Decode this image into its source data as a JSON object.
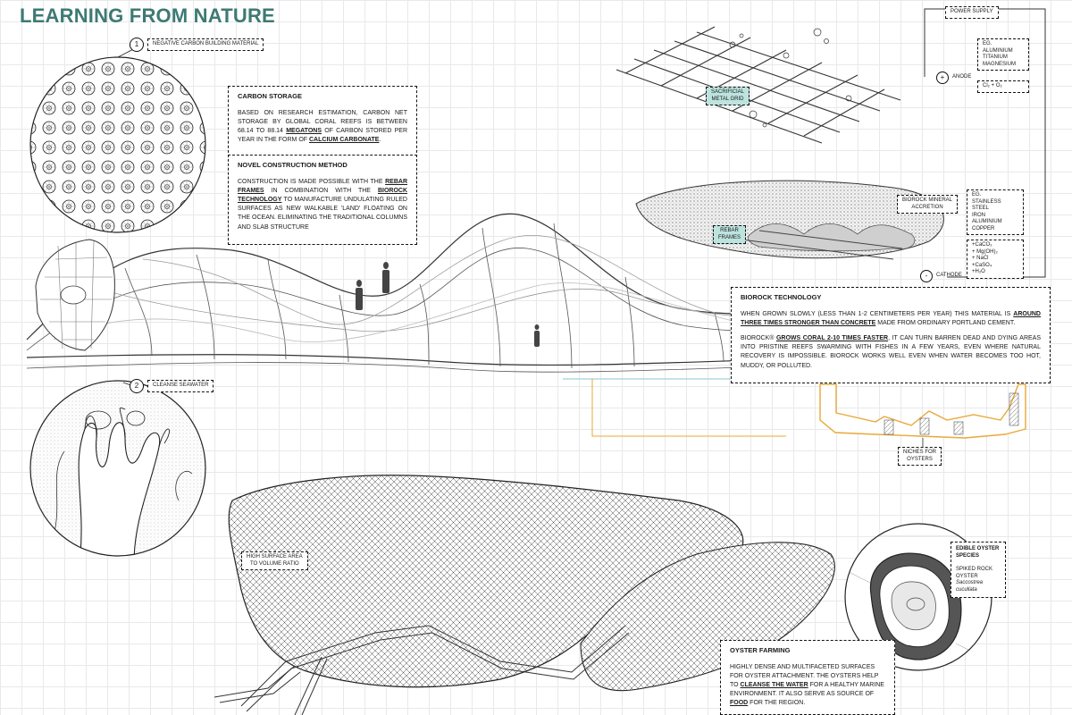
{
  "title": "LEARNING FROM NATURE",
  "sections": {
    "s1": {
      "number": "1",
      "label": "NEGATIVE CARBON BUILDING MATERIAL"
    },
    "s2": {
      "number": "2",
      "label": "CLEANSE SEAWATER"
    }
  },
  "carbon_storage": {
    "heading": "CARBON STORAGE",
    "t1": "BASED ON RESEARCH ESTIMATION, CARBON NET STORAGE BY GLOBAL CORAL REEFS IS BETWEEN 68.14 TO 88.14 ",
    "b1": "MEGATONS",
    "t2": " OF CARBON STORED PER YEAR IN THE FORM OF ",
    "b2": "CALCIUM CARBONATE",
    "t3": "."
  },
  "novel": {
    "heading": "NOVEL CONSTRUCTION METHOD",
    "t1": "CONSTRUCTION IS MADE POSSIBLE WITH THE ",
    "b1": "REBAR FRAMES",
    "t2": " IN COMBINATION WITH THE ",
    "b2": "BIOROCK TECHNOLOGY",
    "t3": " TO MANUFACTURE UNDULATING RULED SURFACES AS NEW WALKABLE 'LAND' FLOATING ON THE OCEAN. ELIMINATING THE TRADITIONAL COLUMNS AND SLAB STRUCTURE"
  },
  "diagram_labels": {
    "power_supply": "POWER SUPPLY",
    "anode_materials": [
      "EG.",
      "ALUMINIUM",
      "TITANIUM",
      "MAGNESIUM"
    ],
    "gas": "Cl₂ + O₂",
    "anode": "ANODE",
    "plus": "+",
    "sacrificial": [
      "SACRIFICIAL",
      "METAL GRID"
    ],
    "mineral": [
      "BIOROCK MINERAL",
      "ACCRETION"
    ],
    "cathode_materials": [
      "EG.",
      "STAINLESS STEEL",
      "IRON",
      "ALUMINIUM",
      "COPPER"
    ],
    "rebar": [
      "REBAR",
      "FRAMES"
    ],
    "compounds": [
      "+CaCO₃",
      "+ Mg(OH)₂",
      "+ NaCl",
      "+CaSO₄",
      "+H₂O"
    ],
    "cathode": "CATHODE",
    "minus": "-",
    "niches": [
      "NICHES FOR",
      "OYSTERS"
    ],
    "surface_area": [
      "HIGH SURFACE AREA",
      "TO VOLUME RATIO"
    ],
    "oyster_species": [
      "EDIBLE OYSTER",
      "SPECIES"
    ],
    "oyster_name": [
      "SPIKED ROCK",
      "OYSTER"
    ],
    "oyster_latin": [
      "Saccostrea",
      "cucullata"
    ]
  },
  "biorock": {
    "heading": "BIOROCK TECHNOLOGY",
    "p1a": "WHEN GROWN SLOWLY (LESS THAN 1-2 CENTIMETERS PER YEAR) THIS MATERIAL IS ",
    "p1b": "AROUND THREE TIMES STRONGER THAN CONCRETE",
    "p1c": " MADE FROM ORDINARY PORTLAND CEMENT.",
    "p2a": "BIOROCK® ",
    "p2b": "GROWS CORAL 2-10 TIMES FASTER",
    "p2c": ", IT CAN TURN BARREN DEAD AND DYING AREAS INTO PRISTINE REEFS SWARMING WITH FISHES IN A FEW YEARS, EVEN WHERE NATURAL RECOVERY IS IMPOSSIBLE. BIOROCK WORKS WELL EVEN WHEN WATER BECOMES TOO HOT, MUDDY, OR POLLUTED."
  },
  "oyster_farming": {
    "heading": "OYSTER FARMING",
    "t1": "HIGHLY DENSE AND MULTIFACETED SURFACES FOR OYSTER ATTACHMENT. THE OYSTERS HELP TO ",
    "b1": "CLEANSE THE WATER",
    "t2": " FOR A HEALTHY MARINE ENVIRONMENT. IT ALSO SERVE AS SOURCE OF ",
    "b2": "FOOD",
    "t3": " FOR THE REGION."
  },
  "colors": {
    "title": "#3d7a73",
    "teal_tag": "#bde3df",
    "water_line": "#9fd3d6",
    "orange": "#e8a93a"
  }
}
